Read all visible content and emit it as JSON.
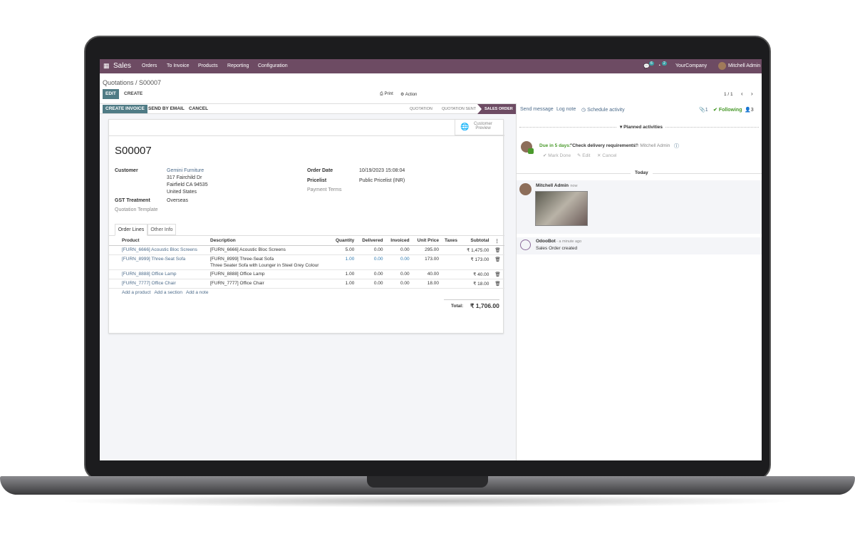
{
  "nav": {
    "app": "Sales",
    "menu": [
      "Orders",
      "To Invoice",
      "Products",
      "Reporting",
      "Configuration"
    ],
    "messages_count": "6",
    "activities_count": "2",
    "company": "YourCompany",
    "user": "Mitchell Admin"
  },
  "breadcrumb": "Quotations / S00007",
  "toolbar": {
    "edit": "EDIT",
    "create": "CREATE",
    "print": "Print",
    "action": "Action",
    "pager": "1 / 1"
  },
  "statusbar": {
    "buttons": [
      "CREATE INVOICE",
      "SEND BY EMAIL",
      "CANCEL"
    ],
    "stages": [
      "QUOTATION",
      "QUOTATION SENT",
      "SALES ORDER"
    ],
    "active_stage": "SALES ORDER"
  },
  "form": {
    "customer_preview": "Customer Preview",
    "name": "S00007",
    "customer_label": "Customer",
    "customer": "Gemini Furniture",
    "address": [
      "317 Fairchild Dr",
      "Fairfield CA 94535",
      "United States"
    ],
    "gst_label": "GST Treatment",
    "gst": "Overseas",
    "template_label": "Quotation Template",
    "order_date_label": "Order Date",
    "order_date": "10/19/2023 15:08:04",
    "pricelist_label": "Pricelist",
    "pricelist": "Public Pricelist (INR)",
    "payment_terms_label": "Payment Terms",
    "tabs": [
      "Order Lines",
      "Other Info"
    ],
    "columns": [
      "Product",
      "Description",
      "Quantity",
      "Delivered",
      "Invoiced",
      "Unit Price",
      "Taxes",
      "Subtotal"
    ],
    "lines": [
      {
        "product": "[FURN_6666] Acoustic Bloc Screens",
        "description": "[FURN_6666] Acoustic Bloc Screens",
        "description2": "",
        "qty": "5.00",
        "delivered": "0.00",
        "invoiced": "0.00",
        "price": "295.00",
        "taxes": "",
        "subtotal": "₹ 1,475.00"
      },
      {
        "product": "[FURN_8999] Three-Seat Sofa",
        "description": "[FURN_8999] Three-Seat Sofa",
        "description2": "Three Seater Sofa with Lounger in Steel Grey Colour",
        "qty": "1.00",
        "delivered": "0.00",
        "invoiced": "0.00",
        "price": "173.00",
        "taxes": "",
        "subtotal": "₹ 173.00"
      },
      {
        "product": "[FURN_8888] Office Lamp",
        "description": "[FURN_8888] Office Lamp",
        "description2": "",
        "qty": "1.00",
        "delivered": "0.00",
        "invoiced": "0.00",
        "price": "40.00",
        "taxes": "",
        "subtotal": "₹ 40.00"
      },
      {
        "product": "[FURN_7777] Office Chair",
        "description": "[FURN_7777] Office Chair",
        "description2": "",
        "qty": "1.00",
        "delivered": "0.00",
        "invoiced": "0.00",
        "price": "18.00",
        "taxes": "",
        "subtotal": "₹ 18.00"
      }
    ],
    "add_links": [
      "Add a product",
      "Add a section",
      "Add a note"
    ],
    "total_label": "Total:",
    "total": "₹ 1,706.00"
  },
  "chatter": {
    "send_message": "Send message",
    "log_note": "Log note",
    "schedule": "Schedule activity",
    "attachments": "1",
    "following": "Following",
    "followers": "3",
    "planned": "Planned activities",
    "due": "Due in 5 days:",
    "activity": "\"Check delivery requirements\"",
    "for": "for Mitchell Admin",
    "mark_done": "Mark Done",
    "edit": "Edit",
    "cancel": "Cancel",
    "today": "Today",
    "messages": [
      {
        "author": "Mitchell Admin",
        "time": "- now",
        "body": ""
      },
      {
        "author": "OdooBot",
        "time": "- a minute ago",
        "body": "Sales Order created"
      }
    ]
  },
  "colors": {
    "brand": "#6d4b63",
    "primary": "#4f7b85",
    "due": "#4a9a2c"
  }
}
